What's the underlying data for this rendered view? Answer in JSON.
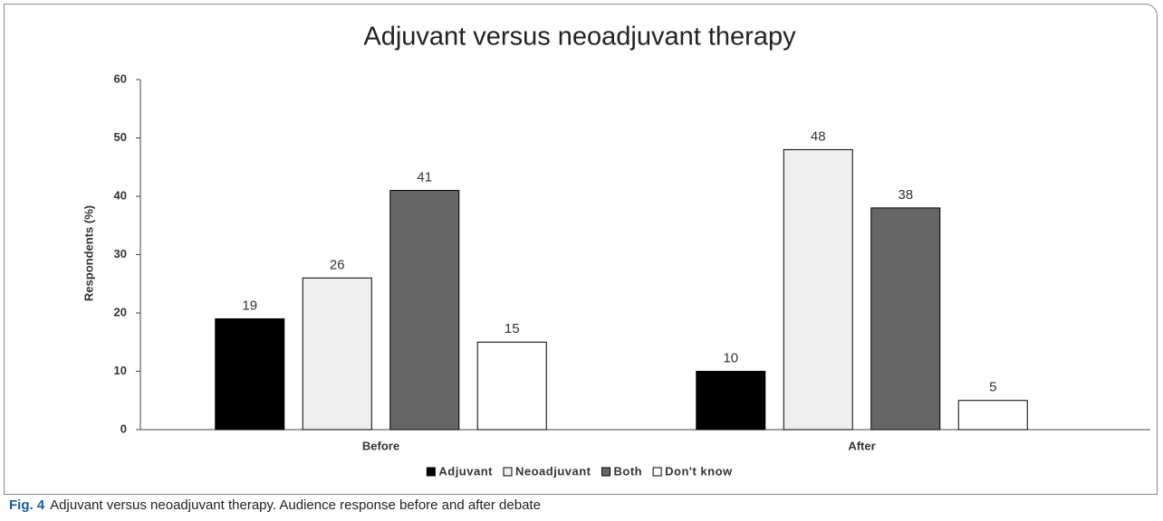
{
  "chart_data": {
    "type": "bar",
    "title": "Adjuvant versus neoadjuvant therapy",
    "y_label": "Respondents (%)",
    "categories": [
      "Before",
      "After"
    ],
    "series": [
      {
        "name": "Adjuvant",
        "color": "#000000",
        "values": [
          19,
          10
        ]
      },
      {
        "name": "Neoadjuvant",
        "color": "#eeeeee",
        "values": [
          26,
          48
        ]
      },
      {
        "name": "Both",
        "color": "#666666",
        "values": [
          41,
          38
        ]
      },
      {
        "name": "Don't know",
        "color": "#ffffff",
        "values": [
          15,
          5
        ]
      }
    ],
    "ylim": [
      0,
      60
    ],
    "yticks": [
      0,
      10,
      20,
      30,
      40,
      50,
      60
    ],
    "grid": false,
    "legend": "bottom"
  },
  "caption": {
    "label": "Fig. 4",
    "text": "Adjuvant versus neoadjuvant therapy. Audience response before and after debate"
  }
}
